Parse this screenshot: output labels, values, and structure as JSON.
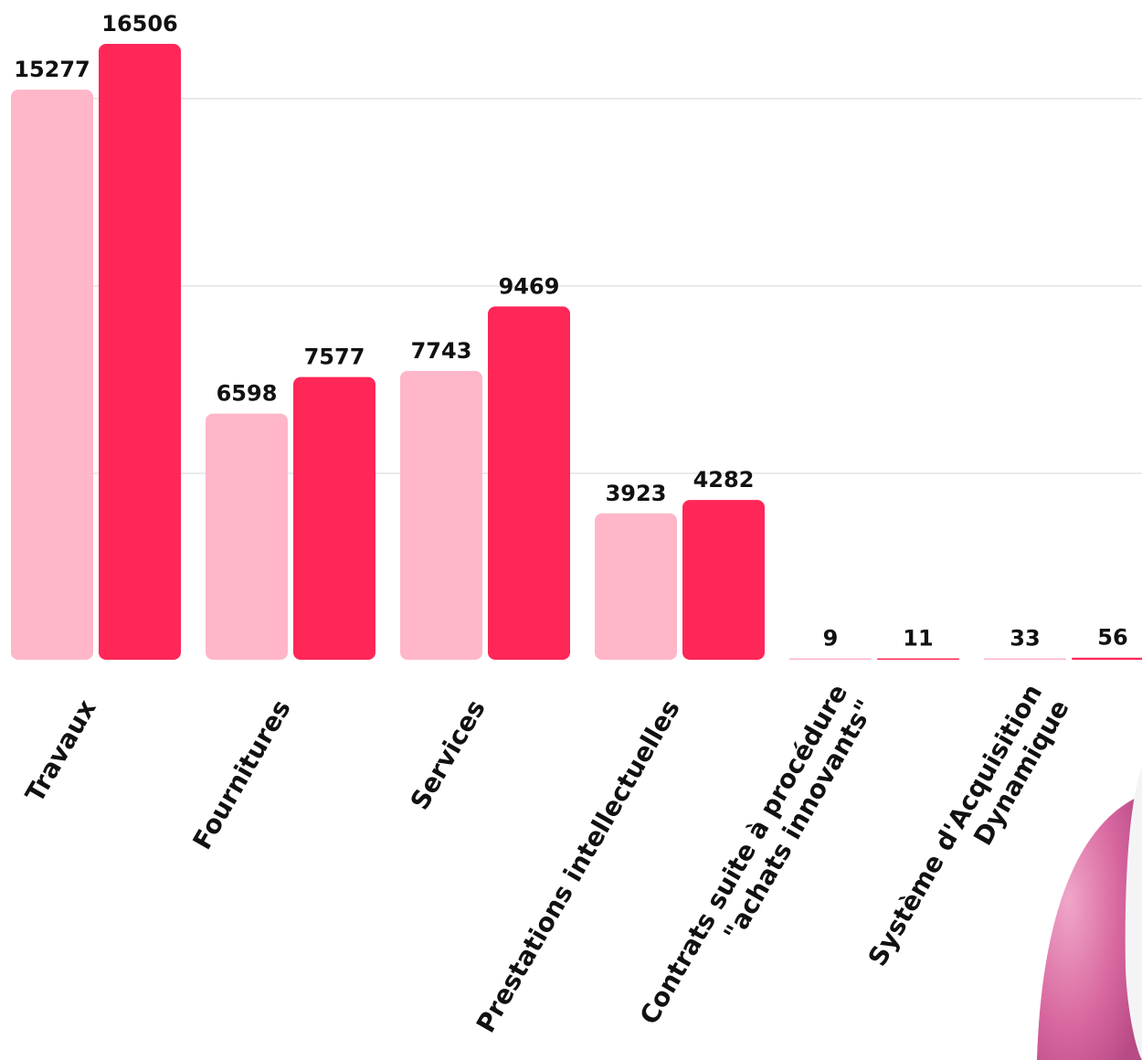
{
  "colors": {
    "series_light": "#ffb6c8",
    "series_dark": "#ff2758",
    "decor_pink": "#d8679f"
  },
  "chart_data": {
    "type": "bar",
    "categories": [
      [
        "Travaux"
      ],
      [
        "Fournitures"
      ],
      [
        "Services"
      ],
      [
        "Prestations intellectuelles"
      ],
      [
        "Contrats suite à procédure",
        "\"achats innovants\""
      ],
      [
        "Système d'Acquisition",
        "Dynamique"
      ]
    ],
    "series": [
      {
        "values": [
          15277,
          6598,
          7743,
          3923,
          9,
          33
        ]
      },
      {
        "values": [
          16506,
          7577,
          9469,
          4282,
          11,
          56
        ]
      }
    ],
    "ylim": [
      0,
      16506
    ],
    "grid": true,
    "legend": "none"
  }
}
